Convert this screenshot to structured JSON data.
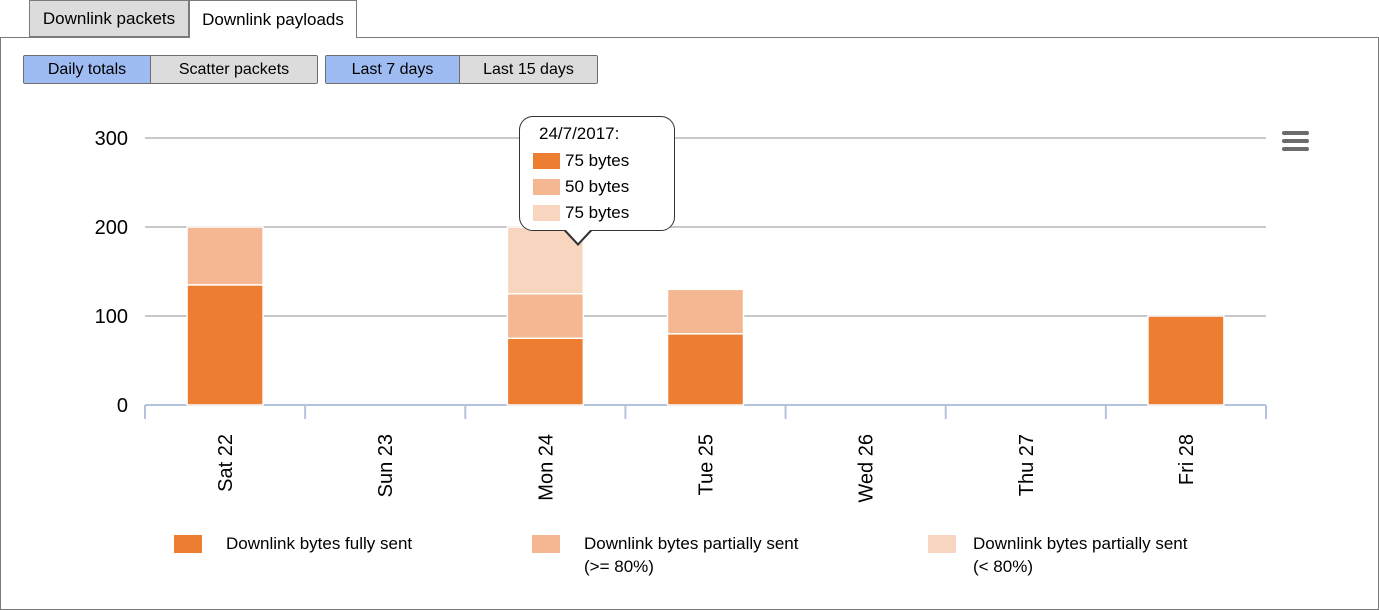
{
  "tabs": [
    {
      "label": "Downlink packets",
      "active": false
    },
    {
      "label": "Downlink payloads",
      "active": true
    }
  ],
  "view_toggle": [
    "Daily totals",
    "Scatter packets"
  ],
  "range_toggle": [
    "Last 7 days",
    "Last 15 days"
  ],
  "colors": {
    "fully_sent": "#ed7d31",
    "partial_ge80": "#f4b791",
    "partial_lt80": "#f8d5bf",
    "grid": "#c8c8cc",
    "axis": "#b4c3dc",
    "toggle_active": "#9ebcf2",
    "toggle_inactive": "#dcdcdc"
  },
  "menu_icon": "hamburger-menu-icon",
  "chart_data": {
    "type": "bar",
    "stacked": true,
    "categories": [
      "Sat 22",
      "Sun 23",
      "Mon 24",
      "Tue 25",
      "Wed 26",
      "Thu 27",
      "Fri 28"
    ],
    "series": [
      {
        "name": "Downlink bytes fully sent",
        "values": [
          135,
          0,
          75,
          80,
          0,
          0,
          100
        ]
      },
      {
        "name": "Downlink bytes partially sent (>= 80%)",
        "values": [
          65,
          0,
          50,
          50,
          0,
          0,
          0
        ]
      },
      {
        "name": "Downlink bytes partially sent (< 80%)",
        "values": [
          0,
          0,
          75,
          0,
          0,
          0,
          0
        ]
      }
    ],
    "yticks": [
      "0",
      "100",
      "200",
      "300"
    ],
    "ylim": [
      0,
      300
    ],
    "grid": true,
    "legend_position": "bottom"
  },
  "tooltip": {
    "date": "24/7/2017:",
    "rows": [
      "75 bytes",
      "50 bytes",
      "75 bytes"
    ]
  },
  "legend": [
    {
      "line1": "Downlink bytes fully sent",
      "line2": ""
    },
    {
      "line1": "Downlink bytes partially sent",
      "line2": "(>= 80%)"
    },
    {
      "line1": "Downlink bytes partially sent",
      "line2": "(< 80%)"
    }
  ]
}
